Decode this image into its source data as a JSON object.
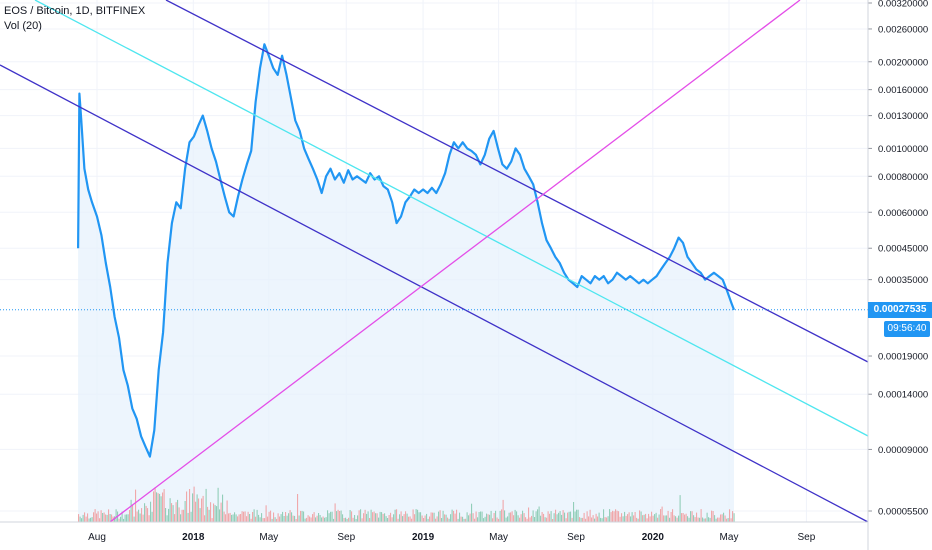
{
  "header": {
    "symbol_line": "EOS / Bitcoin, 1D, BITFINEX",
    "indicator_line": "Vol (20)"
  },
  "last_price": {
    "value": "0.00027535",
    "countdown": "09:56:40"
  },
  "colors": {
    "price_line": "#2196f3",
    "channel_upper": "#3f32c8",
    "channel_lower": "#3f32c8",
    "mid_line": "#4ee6ef",
    "diagonal": "#e44ee8",
    "price_badge": "#2196f3",
    "time_badge": "#2196f3",
    "area_fill": "#e6f1fc",
    "volume_up": "#6fbf9f",
    "volume_down": "#f08a8a",
    "grid": "#f0f3fa"
  },
  "chart_data": {
    "type": "line",
    "title": "EOS / Bitcoin, 1D, BITFINEX",
    "y_scale": "log",
    "y_ticks": [
      "0.00320000",
      "0.00260000",
      "0.00200000",
      "0.00160000",
      "0.00130000",
      "0.00100000",
      "0.00080000",
      "0.00060000",
      "0.00045000",
      "0.00035000",
      "0.00019000",
      "0.00014000",
      "0.00009000",
      "0.00005500"
    ],
    "x_ticks": [
      "Aug",
      "2018",
      "May",
      "Sep",
      "2019",
      "May",
      "Sep",
      "2020",
      "May",
      "Sep"
    ],
    "series": [
      {
        "values": [
          [
            "2017-07-02",
            0.00045
          ],
          [
            "2017-07-04",
            0.00155
          ],
          [
            "2017-07-07",
            0.00125
          ],
          [
            "2017-07-12",
            0.00085
          ],
          [
            "2017-07-18",
            0.00072
          ],
          [
            "2017-07-24",
            0.00065
          ],
          [
            "2017-08-01",
            0.00058
          ],
          [
            "2017-08-08",
            0.0005
          ],
          [
            "2017-08-15",
            0.0004
          ],
          [
            "2017-08-22",
            0.00033
          ],
          [
            "2017-08-29",
            0.00026
          ],
          [
            "2017-09-05",
            0.00022
          ],
          [
            "2017-09-12",
            0.00017
          ],
          [
            "2017-09-19",
            0.00015
          ],
          [
            "2017-09-26",
            0.000125
          ],
          [
            "2017-10-03",
            0.000115
          ],
          [
            "2017-10-10",
            0.0001
          ],
          [
            "2017-10-17",
            9.2e-05
          ],
          [
            "2017-10-24",
            8.5e-05
          ],
          [
            "2017-10-31",
            0.000105
          ],
          [
            "2017-11-07",
            0.00017
          ],
          [
            "2017-11-14",
            0.00023
          ],
          [
            "2017-11-21",
            0.0004
          ],
          [
            "2017-11-28",
            0.00055
          ],
          [
            "2017-12-05",
            0.00065
          ],
          [
            "2017-12-12",
            0.00062
          ],
          [
            "2017-12-19",
            0.00085
          ],
          [
            "2017-12-26",
            0.00105
          ],
          [
            "2018-01-02",
            0.0011
          ],
          [
            "2018-01-09",
            0.0012
          ],
          [
            "2018-01-16",
            0.0013
          ],
          [
            "2018-01-23",
            0.00115
          ],
          [
            "2018-01-30",
            0.001
          ],
          [
            "2018-02-06",
            0.0009
          ],
          [
            "2018-02-13",
            0.00078
          ],
          [
            "2018-02-20",
            0.00068
          ],
          [
            "2018-02-27",
            0.0006
          ],
          [
            "2018-03-06",
            0.00058
          ],
          [
            "2018-03-13",
            0.00068
          ],
          [
            "2018-03-20",
            0.00078
          ],
          [
            "2018-03-27",
            0.00088
          ],
          [
            "2018-04-03",
            0.00098
          ],
          [
            "2018-04-10",
            0.00145
          ],
          [
            "2018-04-17",
            0.0019
          ],
          [
            "2018-04-24",
            0.0023
          ],
          [
            "2018-05-01",
            0.0021
          ],
          [
            "2018-05-08",
            0.0019
          ],
          [
            "2018-05-15",
            0.0018
          ],
          [
            "2018-05-22",
            0.0021
          ],
          [
            "2018-05-29",
            0.0018
          ],
          [
            "2018-06-05",
            0.0015
          ],
          [
            "2018-06-12",
            0.00125
          ],
          [
            "2018-06-19",
            0.00115
          ],
          [
            "2018-06-26",
            0.001
          ],
          [
            "2018-07-03",
            0.00092
          ],
          [
            "2018-07-10",
            0.00085
          ],
          [
            "2018-07-17",
            0.00078
          ],
          [
            "2018-07-24",
            0.0007
          ],
          [
            "2018-07-31",
            0.0008
          ],
          [
            "2018-08-07",
            0.00085
          ],
          [
            "2018-08-14",
            0.00078
          ],
          [
            "2018-08-21",
            0.00082
          ],
          [
            "2018-08-28",
            0.00076
          ],
          [
            "2018-09-04",
            0.00084
          ],
          [
            "2018-09-11",
            0.00078
          ],
          [
            "2018-09-18",
            0.0008
          ],
          [
            "2018-09-25",
            0.00078
          ],
          [
            "2018-10-02",
            0.00076
          ],
          [
            "2018-10-09",
            0.00082
          ],
          [
            "2018-10-16",
            0.00078
          ],
          [
            "2018-10-23",
            0.0008
          ],
          [
            "2018-10-30",
            0.00074
          ],
          [
            "2018-11-06",
            0.00072
          ],
          [
            "2018-11-13",
            0.00065
          ],
          [
            "2018-11-20",
            0.00055
          ],
          [
            "2018-11-27",
            0.00058
          ],
          [
            "2018-12-04",
            0.00065
          ],
          [
            "2018-12-11",
            0.00068
          ],
          [
            "2018-12-18",
            0.00072
          ],
          [
            "2018-12-25",
            0.0007
          ],
          [
            "2019-01-01",
            0.00072
          ],
          [
            "2019-01-08",
            0.0007
          ],
          [
            "2019-01-15",
            0.00073
          ],
          [
            "2019-01-22",
            0.0007
          ],
          [
            "2019-01-29",
            0.00075
          ],
          [
            "2019-02-05",
            0.00082
          ],
          [
            "2019-02-12",
            0.00095
          ],
          [
            "2019-02-19",
            0.00105
          ],
          [
            "2019-02-26",
            0.001
          ],
          [
            "2019-03-05",
            0.00105
          ],
          [
            "2019-03-12",
            0.001
          ],
          [
            "2019-03-19",
            0.00098
          ],
          [
            "2019-03-26",
            0.00095
          ],
          [
            "2019-04-02",
            0.00088
          ],
          [
            "2019-04-09",
            0.00095
          ],
          [
            "2019-04-16",
            0.00108
          ],
          [
            "2019-04-23",
            0.00115
          ],
          [
            "2019-04-30",
            0.001
          ],
          [
            "2019-05-07",
            0.00088
          ],
          [
            "2019-05-14",
            0.00085
          ],
          [
            "2019-05-21",
            0.0009
          ],
          [
            "2019-05-28",
            0.001
          ],
          [
            "2019-06-04",
            0.00095
          ],
          [
            "2019-06-11",
            0.00085
          ],
          [
            "2019-06-18",
            0.0008
          ],
          [
            "2019-06-25",
            0.00075
          ],
          [
            "2019-07-02",
            0.00065
          ],
          [
            "2019-07-09",
            0.00055
          ],
          [
            "2019-07-16",
            0.00048
          ],
          [
            "2019-07-23",
            0.00045
          ],
          [
            "2019-07-30",
            0.00042
          ],
          [
            "2019-08-06",
            0.0004
          ],
          [
            "2019-08-13",
            0.00037
          ],
          [
            "2019-08-20",
            0.00035
          ],
          [
            "2019-08-27",
            0.00034
          ],
          [
            "2019-09-03",
            0.00033
          ],
          [
            "2019-09-10",
            0.00036
          ],
          [
            "2019-09-17",
            0.00035
          ],
          [
            "2019-09-24",
            0.00034
          ],
          [
            "2019-10-01",
            0.00036
          ],
          [
            "2019-10-08",
            0.00035
          ],
          [
            "2019-10-15",
            0.00036
          ],
          [
            "2019-10-22",
            0.00034
          ],
          [
            "2019-10-29",
            0.00035
          ],
          [
            "2019-11-05",
            0.00037
          ],
          [
            "2019-11-12",
            0.00036
          ],
          [
            "2019-11-19",
            0.00035
          ],
          [
            "2019-11-26",
            0.00036
          ],
          [
            "2019-12-03",
            0.00035
          ],
          [
            "2019-12-10",
            0.00034
          ],
          [
            "2019-12-17",
            0.00035
          ],
          [
            "2019-12-24",
            0.00034
          ],
          [
            "2019-12-31",
            0.00035
          ],
          [
            "2020-01-07",
            0.00036
          ],
          [
            "2020-01-14",
            0.00038
          ],
          [
            "2020-01-21",
            0.0004
          ],
          [
            "2020-01-28",
            0.00042
          ],
          [
            "2020-02-04",
            0.00045
          ],
          [
            "2020-02-11",
            0.00049
          ],
          [
            "2020-02-18",
            0.00047
          ],
          [
            "2020-02-25",
            0.00042
          ],
          [
            "2020-03-03",
            0.0004
          ],
          [
            "2020-03-10",
            0.00038
          ],
          [
            "2020-03-17",
            0.00037
          ],
          [
            "2020-03-24",
            0.00035
          ],
          [
            "2020-03-31",
            0.00036
          ],
          [
            "2020-04-07",
            0.00037
          ],
          [
            "2020-04-14",
            0.00036
          ],
          [
            "2020-04-21",
            0.00035
          ],
          [
            "2020-04-28",
            0.00032
          ],
          [
            "2020-05-05",
            0.00029
          ],
          [
            "2020-05-09",
            0.000275
          ]
        ]
      }
    ]
  }
}
